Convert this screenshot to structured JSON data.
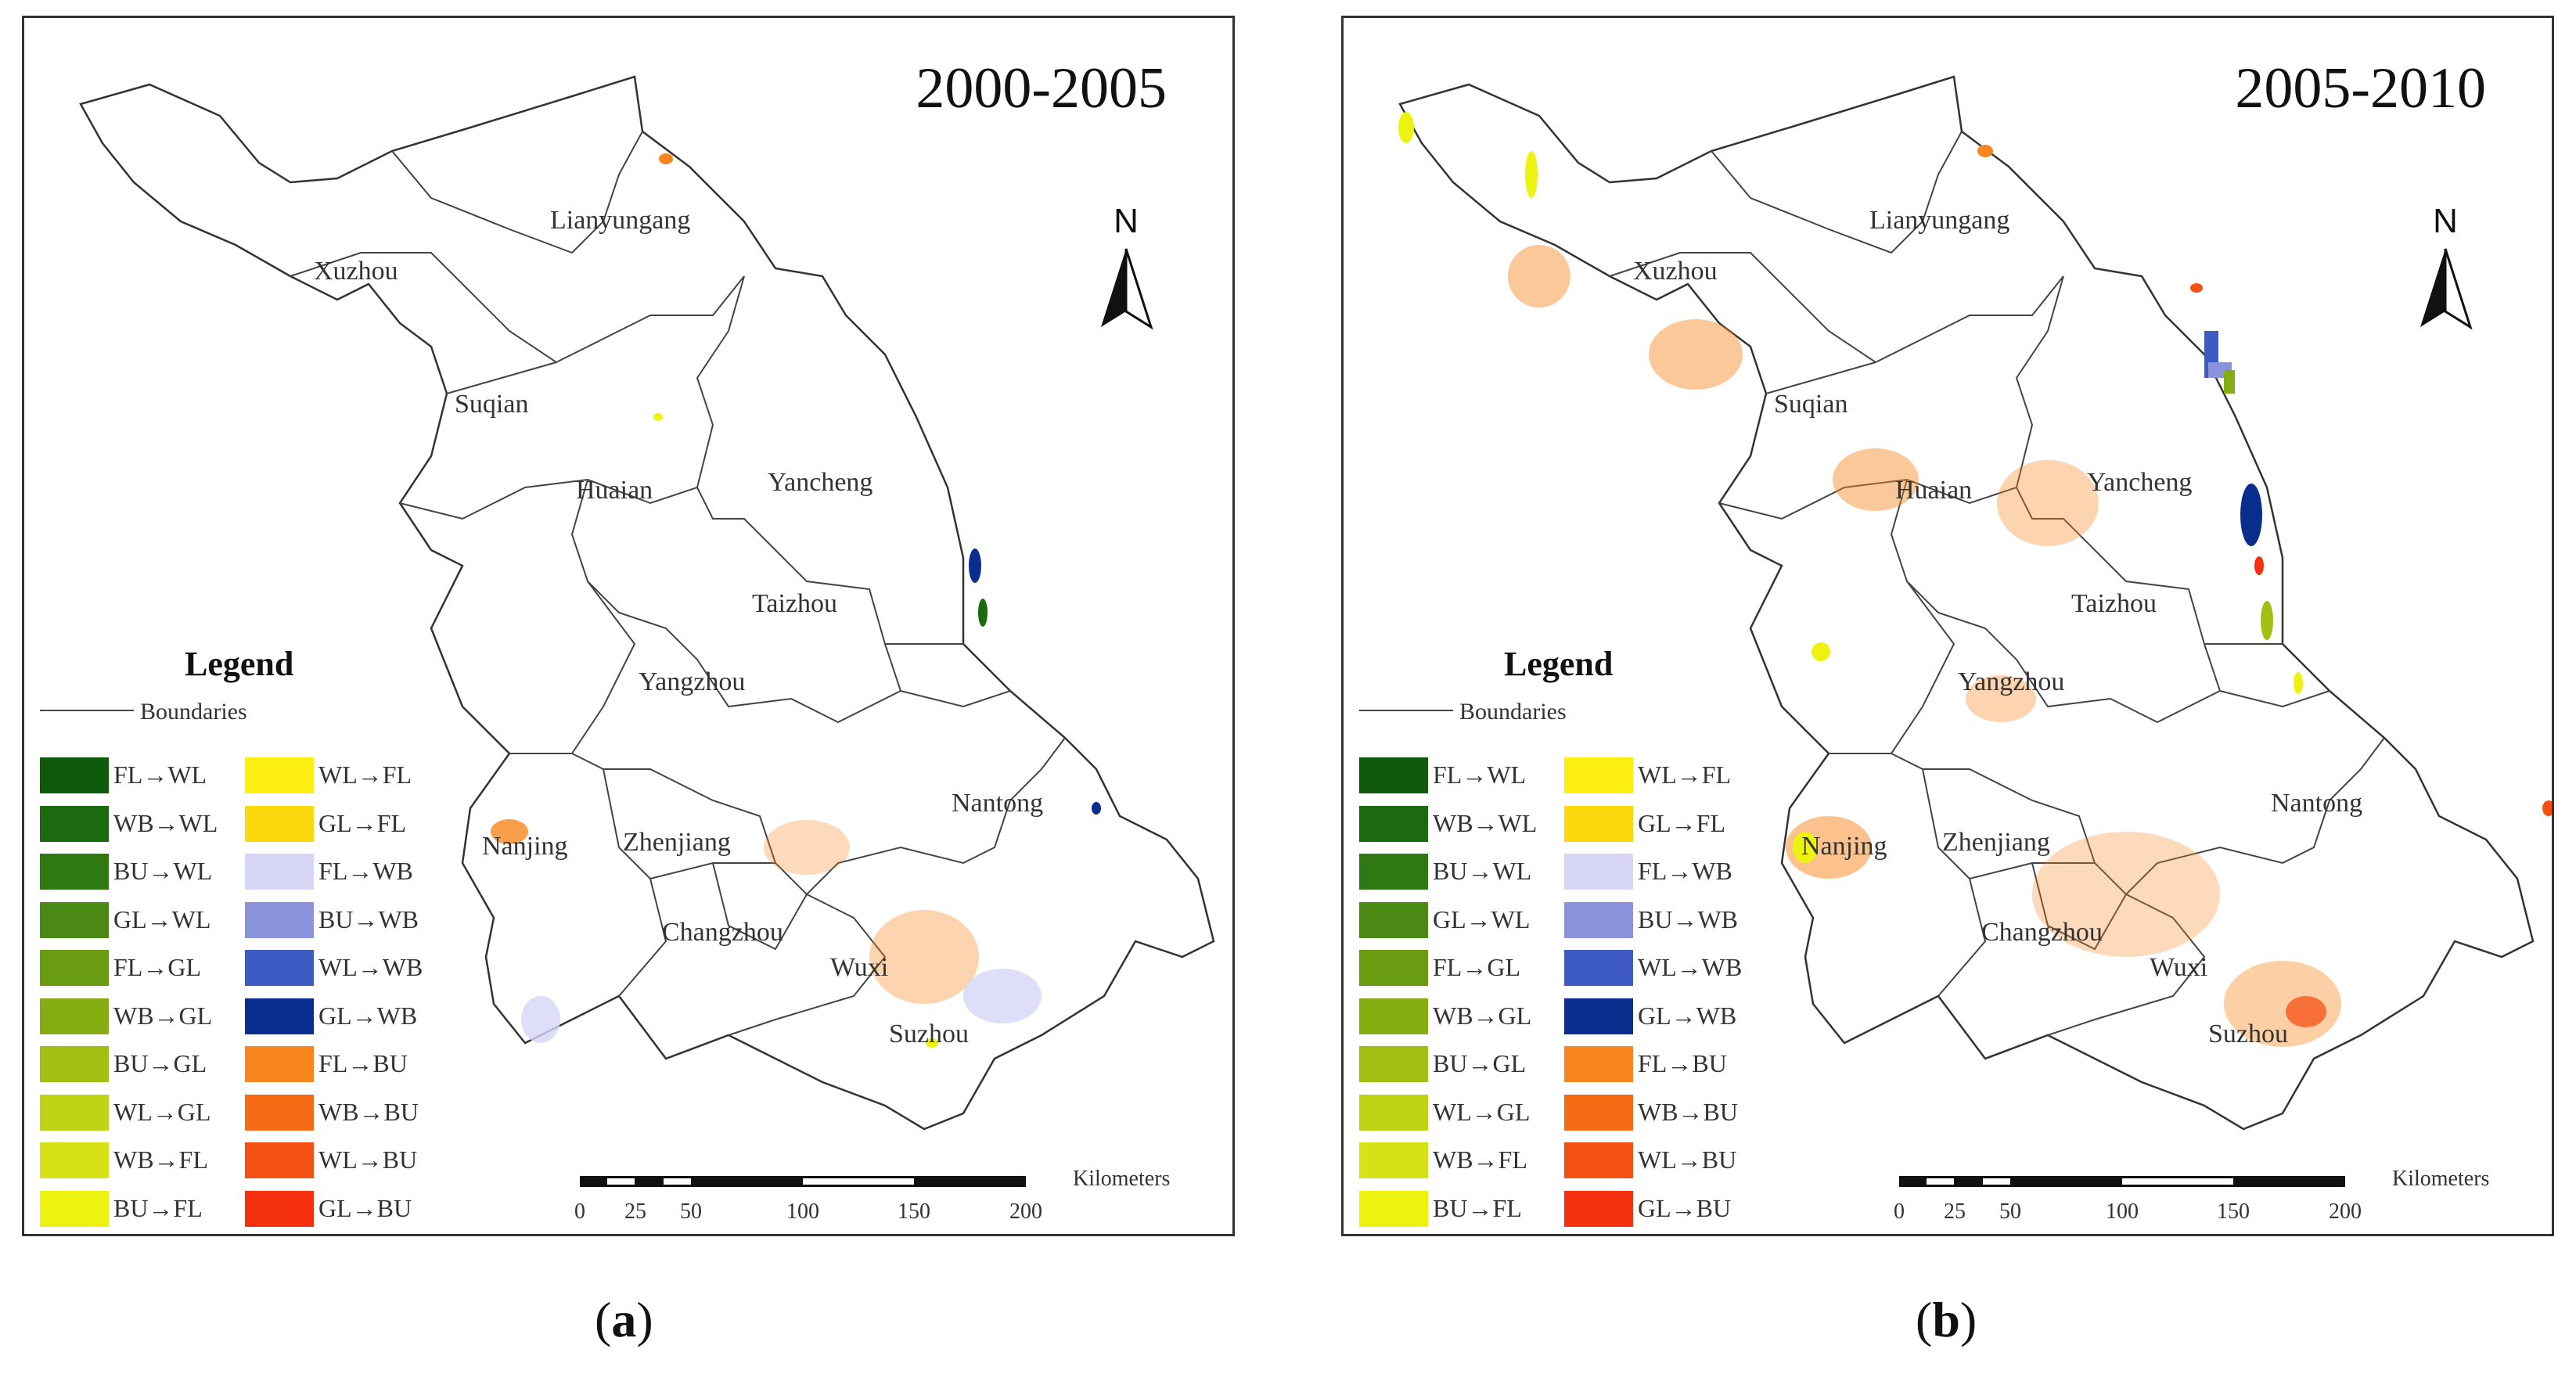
{
  "panels": [
    {
      "id": "a",
      "period": "2000-2005",
      "caption_open": "(",
      "caption_letter": "a",
      "caption_close": ")"
    },
    {
      "id": "b",
      "period": "2005-2010",
      "caption_open": "(",
      "caption_letter": "b",
      "caption_close": ")"
    }
  ],
  "cities": [
    "Lianyungang",
    "Xuzhou",
    "Suqian",
    "Huaian",
    "Yancheng",
    "Taizhou",
    "Yangzhou",
    "Nantong",
    "Nanjing",
    "Zhenjiang",
    "Changzhou",
    "Wuxi",
    "Suzhou"
  ],
  "north_label": "N",
  "legend": {
    "title": "Legend",
    "boundaries_label": "Boundaries",
    "items_left": [
      {
        "label": "FL→WL",
        "color": "#0f5a0b"
      },
      {
        "label": "WB→WL",
        "color": "#1b6a10"
      },
      {
        "label": "BU→WL",
        "color": "#2f7812"
      },
      {
        "label": "GL→WL",
        "color": "#4a8a14"
      },
      {
        "label": "FL→GL",
        "color": "#6a9c12"
      },
      {
        "label": "WB→GL",
        "color": "#85ad12"
      },
      {
        "label": "BU→GL",
        "color": "#a2c014"
      },
      {
        "label": "WL→GL",
        "color": "#bed414"
      },
      {
        "label": "WB→FL",
        "color": "#d6e216"
      },
      {
        "label": "BU→FL",
        "color": "#eef210"
      }
    ],
    "items_right": [
      {
        "label": "WL→FL",
        "color": "#fcee10"
      },
      {
        "label": "GL→FL",
        "color": "#fcd80c"
      },
      {
        "label": "FL→WB",
        "color": "#d7d6f6"
      },
      {
        "label": "BU→WB",
        "color": "#8a92dc"
      },
      {
        "label": "WL→WB",
        "color": "#3e5bc4"
      },
      {
        "label": "GL→WB",
        "color": "#0a2e8e"
      },
      {
        "label": "FL→BU",
        "color": "#f7861e"
      },
      {
        "label": "WB→BU",
        "color": "#f76a16"
      },
      {
        "label": "WL→BU",
        "color": "#f55014"
      },
      {
        "label": "GL→BU",
        "color": "#f43010"
      }
    ]
  },
  "scale": {
    "unit": "Kilometers",
    "ticks": [
      "0",
      "25",
      "50",
      "100",
      "150",
      "200"
    ]
  }
}
